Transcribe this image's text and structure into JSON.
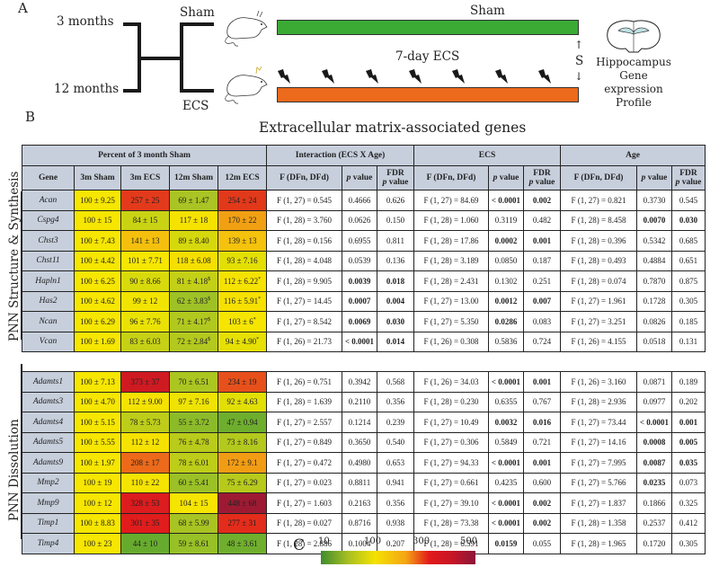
{
  "panel_a": {
    "letter": "A",
    "age_groups": [
      "3 months",
      "12 months"
    ],
    "treatments": [
      "Sham",
      "ECS"
    ],
    "bar_labels": {
      "sham": "Sham",
      "ecs": "7-day ECS"
    },
    "bar_colors": {
      "sham": "#3aaa35",
      "ecs": "#ec6a1c"
    },
    "arrow_label": "S",
    "outcome": [
      "Hippocampus",
      "Gene expression",
      "Profile"
    ],
    "bolt_count": 7
  },
  "panel_b": {
    "letter": "B",
    "title": "Extracellular matrix-associated genes",
    "group_headers": [
      "Percent of 3 month Sham",
      "Interaction (ECS X Age)",
      "ECS",
      "Age"
    ],
    "col_headers": {
      "gene": "Gene",
      "groups": [
        "3m Sham",
        "3m ECS",
        "12m Sham",
        "12m ECS"
      ],
      "f": "F (DFn, DFd)",
      "p": "p value",
      "fdr_line1": "FDR",
      "fdr_line2": "p value"
    },
    "sections": [
      {
        "label": "PNN Structure & Synthesis",
        "rows": [
          {
            "gene": "Acan",
            "vals": [
              "100 ± 9.25",
              "257 ± 25",
              "69 ± 1.47",
              "254 ± 24"
            ],
            "colors": [
              "#f6e600",
              "#e33a1c",
              "#a9c424",
              "#e2391b"
            ],
            "int": [
              "F (1, 27) = 0.545",
              "0.4666",
              "0.626"
            ],
            "int_b": [
              false,
              false
            ],
            "ecs": [
              "F (1, 27) = 84.69",
              "< 0.0001",
              "0.002"
            ],
            "ecs_b": [
              true,
              true
            ],
            "age": [
              "F (1, 27) = 0.821",
              "0.3730",
              "0.545"
            ],
            "age_b": [
              false,
              false
            ]
          },
          {
            "gene": "Cspg4",
            "vals": [
              "100 ± 15",
              "84 ± 15",
              "117 ± 18",
              "170 ± 22"
            ],
            "colors": [
              "#f6e600",
              "#c9d314",
              "#f5e200",
              "#f2a013"
            ],
            "int": [
              "F (1, 28) = 3.760",
              "0.0626",
              "0.150"
            ],
            "int_b": [
              false,
              false
            ],
            "ecs": [
              "F (1, 28) = 1.060",
              "0.3119",
              "0.482"
            ],
            "ecs_b": [
              false,
              false
            ],
            "age": [
              "F (1, 28) = 8.458",
              "0.0070",
              "0.030"
            ],
            "age_b": [
              true,
              true
            ]
          },
          {
            "gene": "Chst3",
            "vals": [
              "100 ± 7.43",
              "141 ± 13",
              "89 ± 8.40",
              "139 ± 13"
            ],
            "colors": [
              "#f6e600",
              "#f5c00d",
              "#d6d80e",
              "#f5c20d"
            ],
            "int": [
              "F (1, 28) = 0.156",
              "0.6955",
              "0.811"
            ],
            "int_b": [
              false,
              false
            ],
            "ecs": [
              "F (1, 28) = 17.86",
              "0.0002",
              "0.001"
            ],
            "ecs_b": [
              true,
              true
            ],
            "age": [
              "F (1, 28) = 0.396",
              "0.5342",
              "0.685"
            ],
            "age_b": [
              false,
              false
            ]
          },
          {
            "gene": "Chst11",
            "vals": [
              "100 ± 4.42",
              "101 ± 7.71",
              "118 ± 6.08",
              "93 ± 7.16"
            ],
            "colors": [
              "#f6e600",
              "#f6e600",
              "#f5df00",
              "#e3df05"
            ],
            "int": [
              "F (1, 28) = 4.048",
              "0.0539",
              "0.136"
            ],
            "int_b": [
              false,
              false
            ],
            "ecs": [
              "F (1, 28) = 3.189",
              "0.0850",
              "0.187"
            ],
            "ecs_b": [
              false,
              false
            ],
            "age": [
              "F (1, 28) = 0.493",
              "0.4884",
              "0.651"
            ],
            "age_b": [
              false,
              false
            ]
          },
          {
            "gene": "Hapln1",
            "vals": [
              "100 ± 6.25",
              "90 ± 8.66",
              "81 ± 4.18$",
              "112 ± 6.22*"
            ],
            "colors": [
              "#f6e600",
              "#d9da0c",
              "#c3d017",
              "#f5e200"
            ],
            "int": [
              "F (1, 28) = 9.905",
              "0.0039",
              "0.018"
            ],
            "int_b": [
              true,
              true
            ],
            "ecs": [
              "F (1, 28) = 2.431",
              "0.1302",
              "0.251"
            ],
            "ecs_b": [
              false,
              false
            ],
            "age": [
              "F (1, 28) = 0.074",
              "0.7870",
              "0.875"
            ],
            "age_b": [
              false,
              false
            ]
          },
          {
            "gene": "Has2",
            "vals": [
              "100 ± 4.62",
              "99 ± 12",
              "62 ± 3.83$",
              "116 ± 5.91*"
            ],
            "colors": [
              "#f6e600",
              "#f2e402",
              "#9ec226",
              "#f5e000"
            ],
            "int": [
              "F (1, 27) = 14.45",
              "0.0007",
              "0.004"
            ],
            "int_b": [
              true,
              true
            ],
            "ecs": [
              "F (1, 27) = 13.00",
              "0.0012",
              "0.007"
            ],
            "ecs_b": [
              true,
              true
            ],
            "age": [
              "F (1, 27) = 1.961",
              "0.1728",
              "0.305"
            ],
            "age_b": [
              false,
              false
            ]
          },
          {
            "gene": "Ncan",
            "vals": [
              "100 ± 6.29",
              "96 ± 7.76",
              "71 ± 4.17$",
              "103 ± 6*"
            ],
            "colors": [
              "#f6e600",
              "#eae204",
              "#b1c81f",
              "#f6e500"
            ],
            "int": [
              "F (1, 27) = 8.542",
              "0.0069",
              "0.030"
            ],
            "int_b": [
              true,
              true
            ],
            "ecs": [
              "F (1, 27) = 5.350",
              "0.0286",
              "0.083"
            ],
            "ecs_b": [
              true,
              false
            ],
            "age": [
              "F (1, 27) = 3.251",
              "0.0826",
              "0.185"
            ],
            "age_b": [
              false,
              false
            ]
          },
          {
            "gene": "Vcan",
            "vals": [
              "100 ± 1.69",
              "83 ± 6.03",
              "72 ± 2.84$",
              "94 ± 4.90*"
            ],
            "colors": [
              "#f6e600",
              "#c6d115",
              "#b3c91e",
              "#e6e005"
            ],
            "int": [
              "F (1, 26) = 21.73",
              "< 0.0001",
              "0.014"
            ],
            "int_b": [
              true,
              true
            ],
            "ecs": [
              "F (1, 26) = 0.308",
              "0.5836",
              "0.724"
            ],
            "ecs_b": [
              false,
              false
            ],
            "age": [
              "F (1, 26) = 4.155",
              "0.0518",
              "0.131"
            ],
            "age_b": [
              false,
              false
            ]
          }
        ]
      },
      {
        "label": "PNN Dissolution",
        "rows": [
          {
            "gene": "Adamts1",
            "vals": [
              "100 ± 7.13",
              "373 ± 37",
              "70 ± 6.51",
              "234 ± 19"
            ],
            "colors": [
              "#f6e600",
              "#cf1a22",
              "#acc621",
              "#e8501b"
            ],
            "int": [
              "F (1, 26) = 0.751",
              "0.3942",
              "0.568"
            ],
            "int_b": [
              false,
              false
            ],
            "ecs": [
              "F (1, 26) = 34.03",
              "< 0.0001",
              "0.001"
            ],
            "ecs_b": [
              true,
              true
            ],
            "age": [
              "F (1, 26) = 3.160",
              "0.0871",
              "0.189"
            ],
            "age_b": [
              false,
              false
            ]
          },
          {
            "gene": "Adamts3",
            "vals": [
              "100 ± 4.70",
              "112 ± 9.00",
              "97 ± 7.16",
              "92 ± 4.63"
            ],
            "colors": [
              "#f6e600",
              "#f5e200",
              "#efe303",
              "#e2df06"
            ],
            "int": [
              "F (1, 28) = 1.639",
              "0.2110",
              "0.356"
            ],
            "int_b": [
              false,
              false
            ],
            "ecs": [
              "F (1, 28) = 0.230",
              "0.6355",
              "0.767"
            ],
            "ecs_b": [
              false,
              false
            ],
            "age": [
              "F (1, 28) = 2.936",
              "0.0977",
              "0.202"
            ],
            "age_b": [
              false,
              false
            ]
          },
          {
            "gene": "Adamts4",
            "vals": [
              "100 ± 5.15",
              "78 ± 5.73",
              "55 ± 3.72",
              "47 ± 0.94"
            ],
            "colors": [
              "#f6e600",
              "#bdcd19",
              "#8cbb2a",
              "#6eae2d"
            ],
            "int": [
              "F (1, 27) = 2.557",
              "0.1214",
              "0.239"
            ],
            "int_b": [
              false,
              false
            ],
            "ecs": [
              "F (1, 27) = 10.49",
              "0.0032",
              "0.016"
            ],
            "ecs_b": [
              true,
              true
            ],
            "age": [
              "F (1, 27) = 73.44",
              "< 0.0001",
              "0.001"
            ],
            "age_b": [
              true,
              true
            ]
          },
          {
            "gene": "Adamts5",
            "vals": [
              "100 ± 5.55",
              "112 ± 12",
              "76 ± 4.78",
              "73 ± 8.16"
            ],
            "colors": [
              "#f6e600",
              "#f5e200",
              "#b9cb1b",
              "#b4c91d"
            ],
            "int": [
              "F (1, 27) = 0.849",
              "0.3650",
              "0.540"
            ],
            "int_b": [
              false,
              false
            ],
            "ecs": [
              "F (1, 27) = 0.306",
              "0.5849",
              "0.721"
            ],
            "ecs_b": [
              false,
              false
            ],
            "age": [
              "F (1, 27) = 14.16",
              "0.0008",
              "0.005"
            ],
            "age_b": [
              true,
              true
            ]
          },
          {
            "gene": "Adamts9",
            "vals": [
              "100 ± 1.97",
              "208 ± 17",
              "78 ± 6.01",
              "172 ± 9.1"
            ],
            "colors": [
              "#f6e600",
              "#ec6a1a",
              "#bdcd19",
              "#f29c14"
            ],
            "int": [
              "F (1, 27) = 0.472",
              "0.4980",
              "0.653"
            ],
            "int_b": [
              false,
              false
            ],
            "ecs": [
              "F (1, 27) = 94.33",
              "< 0.0001",
              "0.001"
            ],
            "ecs_b": [
              true,
              true
            ],
            "age": [
              "F (1, 27) = 7.995",
              "0.0087",
              "0.035"
            ],
            "age_b": [
              true,
              true
            ]
          },
          {
            "gene": "Mmp2",
            "vals": [
              "100 ± 19",
              "110 ± 22",
              "60 ± 5.41",
              "75 ± 6.29"
            ],
            "colors": [
              "#f6e600",
              "#f5e300",
              "#9bc127",
              "#b7ca1c"
            ],
            "int": [
              "F (1, 27) = 0.023",
              "0.8811",
              "0.941"
            ],
            "int_b": [
              false,
              false
            ],
            "ecs": [
              "F (1, 27) = 0.661",
              "0.4235",
              "0.600"
            ],
            "ecs_b": [
              false,
              false
            ],
            "age": [
              "F (1, 27) = 5.766",
              "0.0235",
              "0.073"
            ],
            "age_b": [
              true,
              false
            ]
          },
          {
            "gene": "Mmp9",
            "vals": [
              "100 ± 12",
              "328 ± 53",
              "104 ± 15",
              "448 ± 68"
            ],
            "colors": [
              "#f6e600",
              "#dc1c1e",
              "#f6e500",
              "#9e1a33"
            ],
            "int": [
              "F (1, 27) = 1.603",
              "0.2163",
              "0.356"
            ],
            "int_b": [
              false,
              false
            ],
            "ecs": [
              "F (1, 27) = 39.10",
              "< 0.0001",
              "0.002"
            ],
            "ecs_b": [
              true,
              true
            ],
            "age": [
              "F (1, 27) = 1.837",
              "0.1866",
              "0.325"
            ],
            "age_b": [
              false,
              false
            ]
          },
          {
            "gene": "Timp1",
            "vals": [
              "100 ± 8.83",
              "301 ± 35",
              "68 ± 5.99",
              "277 ± 31"
            ],
            "colors": [
              "#f6e600",
              "#e11c1c",
              "#a8c423",
              "#e42c1b"
            ],
            "int": [
              "F (1, 28) = 0.027",
              "0.8716",
              "0.938"
            ],
            "int_b": [
              false,
              false
            ],
            "ecs": [
              "F (1, 28) = 73.38",
              "< 0.0001",
              "0.002"
            ],
            "ecs_b": [
              true,
              true
            ],
            "age": [
              "F (1, 28) = 1.358",
              "0.2537",
              "0.412"
            ],
            "age_b": [
              false,
              false
            ]
          },
          {
            "gene": "Timp4",
            "vals": [
              "100 ± 23",
              "44 ± 10",
              "59 ± 8.61",
              "48 ± 3.61"
            ],
            "colors": [
              "#f6e600",
              "#67ab2e",
              "#98c027",
              "#70af2d"
            ],
            "int": [
              "F (1, 28) = 2.886",
              "0.1004",
              "0.207"
            ],
            "int_b": [
              false,
              false
            ],
            "ecs": [
              "F (1, 28) = 6.591",
              "0.0159",
              "0.055"
            ],
            "ecs_b": [
              true,
              false
            ],
            "age": [
              "F (1, 28) = 1.965",
              "0.1720",
              "0.305"
            ],
            "age_b": [
              false,
              false
            ]
          }
        ]
      }
    ]
  },
  "panel_c": {
    "letter": "C",
    "ticks": [
      "10",
      "100",
      "300",
      "500"
    ],
    "gradient_colors": [
      "#3f8c2e",
      "#f4e200",
      "#e21a1a",
      "#8b1638"
    ]
  },
  "chart_data": {
    "type": "heatmap",
    "title": "Extracellular matrix-associated genes",
    "value_unit": "Percent of 3 month Sham (mean ± SEM)",
    "columns": [
      "3m Sham",
      "3m ECS",
      "12m Sham",
      "12m ECS"
    ],
    "color_scale": {
      "ticks": [
        10,
        100,
        300,
        500
      ],
      "colors": [
        "green",
        "yellow",
        "red",
        "dark red"
      ]
    },
    "rows": {
      "Acan": [
        100,
        257,
        69,
        254
      ],
      "Cspg4": [
        100,
        84,
        117,
        170
      ],
      "Chst3": [
        100,
        141,
        89,
        139
      ],
      "Chst11": [
        100,
        101,
        118,
        93
      ],
      "Hapln1": [
        100,
        90,
        81,
        112
      ],
      "Has2": [
        100,
        99,
        62,
        116
      ],
      "Ncan": [
        100,
        96,
        71,
        103
      ],
      "Vcan": [
        100,
        83,
        72,
        94
      ],
      "Adamts1": [
        100,
        373,
        70,
        234
      ],
      "Adamts3": [
        100,
        112,
        97,
        92
      ],
      "Adamts4": [
        100,
        78,
        55,
        47
      ],
      "Adamts5": [
        100,
        112,
        76,
        73
      ],
      "Adamts9": [
        100,
        208,
        78,
        172
      ],
      "Mmp2": [
        100,
        110,
        60,
        75
      ],
      "Mmp9": [
        100,
        328,
        104,
        448
      ],
      "Timp1": [
        100,
        301,
        68,
        277
      ],
      "Timp4": [
        100,
        44,
        59,
        48
      ]
    }
  }
}
